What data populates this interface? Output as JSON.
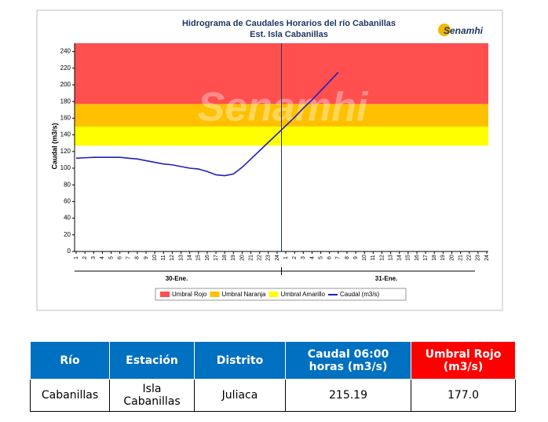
{
  "chart_data": {
    "type": "line",
    "title": "Hidrograma de Caudales Horarios del río Cabanillas",
    "subtitle": "Est. Isla Cabanillas",
    "logo": "Senamhi",
    "watermark": "Senamhi",
    "y_label": "Caudal  (m3/s)",
    "categories": [
      "1",
      "2",
      "3",
      "4",
      "5",
      "6",
      "7",
      "8",
      "9",
      "10",
      "11",
      "12",
      "13",
      "14",
      "15",
      "16",
      "17",
      "18",
      "19",
      "20",
      "21",
      "22",
      "23",
      "24",
      "1",
      "2",
      "3",
      "4",
      "5",
      "6",
      "7",
      "8",
      "9",
      "10",
      "11",
      "12",
      "13",
      "14",
      "15",
      "16",
      "17",
      "18",
      "19",
      "20",
      "21",
      "22",
      "23",
      "24"
    ],
    "x_groups": [
      "30-Ene.",
      "31-Ene."
    ],
    "bands": [
      {
        "name": "Umbral Rojo",
        "color": "#ff4f4f",
        "from": 177,
        "to": 250
      },
      {
        "name": "Umbral Naranja",
        "color": "#ffc000",
        "from": 150,
        "to": 177
      },
      {
        "name": "Umbral Amarillo",
        "color": "#ffff00",
        "from": 127,
        "to": 150
      }
    ],
    "series": [
      {
        "name": "Caudal (m3/s)",
        "color": "#1f1fbf",
        "values": [
          112,
          112.5,
          113,
          113,
          113,
          113,
          112,
          111,
          109,
          107,
          105,
          104,
          102,
          100,
          99,
          96,
          92,
          91,
          93,
          101,
          111,
          121,
          131,
          141,
          151,
          161,
          172,
          182,
          193,
          204,
          215.19,
          null,
          null,
          null,
          null,
          null,
          null,
          null,
          null,
          null,
          null,
          null,
          null,
          null,
          null,
          null,
          null,
          null
        ]
      }
    ],
    "ylim": [
      0,
      250
    ],
    "yticks": [
      0,
      20,
      40,
      60,
      80,
      100,
      120,
      140,
      160,
      180,
      200,
      220,
      240
    ]
  },
  "table": {
    "headers": [
      "Río",
      "Estación",
      "Distrito",
      "Caudal  06:00 horas (m3/s)",
      "Umbral Rojo (m3/s)"
    ],
    "rows": [
      [
        "Cabanillas",
        "Isla Cabanillas",
        "Juliaca",
        "215.19",
        "177.0"
      ]
    ]
  }
}
